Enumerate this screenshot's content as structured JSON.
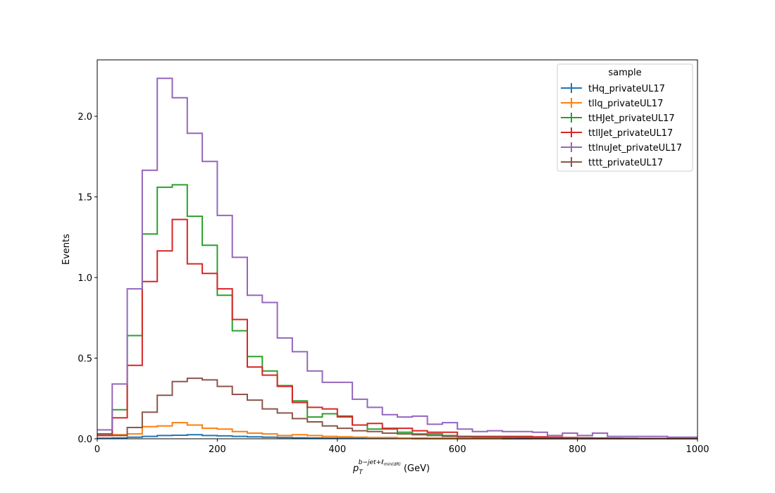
{
  "chart_data": {
    "type": "line",
    "style": "step-histogram",
    "ylabel": "Events",
    "xlabel": {
      "main": "p",
      "sub": "T",
      "sup": "b−jet+ℓ",
      "sup_sub": "min(dR)",
      "unit": " (GeV)"
    },
    "xlim": [
      0,
      1000
    ],
    "ylim": [
      0,
      2.35
    ],
    "x_ticks": [
      0,
      200,
      400,
      600,
      800,
      1000
    ],
    "y_ticks": [
      0.0,
      0.5,
      1.0,
      1.5,
      2.0
    ],
    "x_tick_labels": [
      "0",
      "200",
      "400",
      "600",
      "800",
      "1000"
    ],
    "y_tick_labels": [
      "0.0",
      "0.5",
      "1.0",
      "1.5",
      "2.0"
    ],
    "grid": false,
    "legend": {
      "title": "sample",
      "placement": "top-right"
    },
    "bin_edges": [
      0,
      25,
      50,
      75,
      100,
      125,
      150,
      175,
      200,
      225,
      250,
      275,
      300,
      325,
      350,
      375,
      400,
      425,
      450,
      475,
      500,
      525,
      550,
      575,
      600,
      625,
      650,
      675,
      700,
      725,
      750,
      775,
      800,
      825,
      850,
      875,
      900,
      925,
      950,
      975,
      1000
    ],
    "series": [
      {
        "name": "tHq_privateUL17",
        "color": "#1f77b4",
        "values": [
          0.003,
          0.005,
          0.01,
          0.015,
          0.02,
          0.022,
          0.025,
          0.02,
          0.018,
          0.015,
          0.012,
          0.01,
          0.008,
          0.006,
          0.005,
          0.004,
          0.003,
          0.003,
          0.002,
          0.002,
          0.002,
          0.001,
          0.001,
          0.001,
          0.001,
          0.001,
          0.001,
          0.0,
          0.0,
          0.0,
          0.0,
          0.0,
          0.0,
          0.0,
          0.0,
          0.0,
          0.0,
          0.0,
          0.0,
          0.0
        ]
      },
      {
        "name": "tllq_privateUL17",
        "color": "#ff7f0e",
        "values": [
          0.02,
          0.025,
          0.03,
          0.075,
          0.08,
          0.1,
          0.085,
          0.065,
          0.06,
          0.045,
          0.035,
          0.03,
          0.02,
          0.025,
          0.02,
          0.015,
          0.012,
          0.01,
          0.008,
          0.008,
          0.005,
          0.005,
          0.004,
          0.003,
          0.003,
          0.003,
          0.002,
          0.002,
          0.002,
          0.001,
          0.001,
          0.001,
          0.001,
          0.001,
          0.001,
          0.001,
          0.001,
          0.0,
          0.0,
          0.0
        ]
      },
      {
        "name": "ttHJet_privateUL17",
        "color": "#2ca02c",
        "values": [
          0.03,
          0.18,
          0.64,
          1.27,
          1.56,
          1.575,
          1.38,
          1.2,
          0.89,
          0.67,
          0.51,
          0.42,
          0.33,
          0.235,
          0.135,
          0.155,
          0.135,
          0.085,
          0.06,
          0.06,
          0.04,
          0.03,
          0.03,
          0.02,
          0.015,
          0.012,
          0.012,
          0.01,
          0.01,
          0.008,
          0.007,
          0.005,
          0.005,
          0.004,
          0.003,
          0.002,
          0.002,
          0.002,
          0.001,
          0.001
        ]
      },
      {
        "name": "ttllJet_privateUL17",
        "color": "#d62728",
        "values": [
          0.02,
          0.13,
          0.455,
          0.975,
          1.165,
          1.36,
          1.085,
          1.025,
          0.93,
          0.74,
          0.445,
          0.395,
          0.325,
          0.225,
          0.195,
          0.185,
          0.14,
          0.085,
          0.095,
          0.065,
          0.065,
          0.05,
          0.04,
          0.04,
          0.015,
          0.015,
          0.015,
          0.015,
          0.015,
          0.012,
          0.01,
          0.008,
          0.006,
          0.005,
          0.004,
          0.003,
          0.002,
          0.002,
          0.001,
          0.001
        ]
      },
      {
        "name": "ttlnuJet_privateUL17",
        "color": "#9467bd",
        "values": [
          0.055,
          0.34,
          0.93,
          1.665,
          2.235,
          2.115,
          1.895,
          1.72,
          1.385,
          1.125,
          0.89,
          0.845,
          0.625,
          0.54,
          0.42,
          0.35,
          0.35,
          0.245,
          0.195,
          0.15,
          0.135,
          0.14,
          0.09,
          0.1,
          0.06,
          0.045,
          0.05,
          0.045,
          0.045,
          0.04,
          0.02,
          0.035,
          0.02,
          0.035,
          0.015,
          0.015,
          0.015,
          0.015,
          0.01,
          0.01
        ]
      },
      {
        "name": "tttt_privateUL17",
        "color": "#8c564b",
        "values": [
          0.03,
          0.02,
          0.07,
          0.165,
          0.27,
          0.355,
          0.375,
          0.365,
          0.325,
          0.275,
          0.24,
          0.185,
          0.16,
          0.125,
          0.105,
          0.08,
          0.065,
          0.05,
          0.045,
          0.035,
          0.03,
          0.025,
          0.02,
          0.015,
          0.012,
          0.01,
          0.01,
          0.008,
          0.005,
          0.005,
          0.004,
          0.003,
          0.003,
          0.002,
          0.002,
          0.002,
          0.001,
          0.001,
          0.001,
          0.001
        ]
      }
    ]
  }
}
